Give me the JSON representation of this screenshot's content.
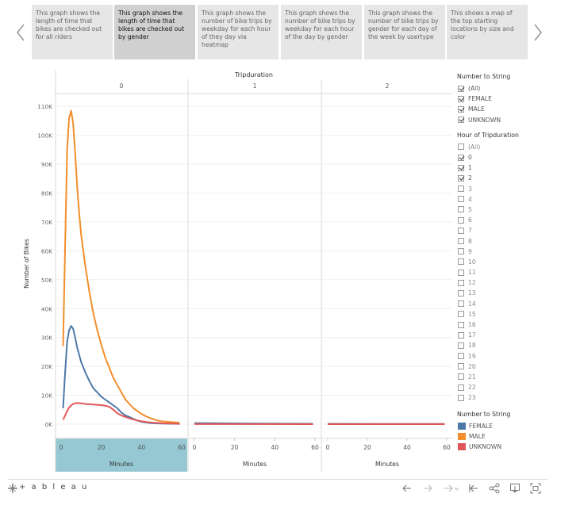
{
  "story": {
    "points": [
      {
        "text": "This graph shows the length of time that bikes are checked out for all riders",
        "active": false
      },
      {
        "text": "This graph shows the length of time that bikes are checked out by gender",
        "active": true
      },
      {
        "text": "This graph shows the number of bike trips by weekday for each hour of they day via heatmap",
        "active": false
      },
      {
        "text": "This graph shows the number of bike trips by weekday for each hour of the day by gender",
        "active": false
      },
      {
        "text": "This graph shows the number of bike trips by gender for each day of the week by usertype",
        "active": false
      },
      {
        "text": "This shows a map of the top starting locations by size and color",
        "active": false
      }
    ]
  },
  "chart_data": {
    "type": "line",
    "column_header": "Tripduration",
    "columns": [
      "0",
      "1",
      "2"
    ],
    "ylabel": "Number of Bikes",
    "xlabel": "Minutes",
    "ylim": [
      0,
      115000
    ],
    "y_ticks": [
      0,
      10000,
      20000,
      30000,
      40000,
      50000,
      60000,
      70000,
      80000,
      90000,
      100000,
      110000
    ],
    "y_tick_labels": [
      "0K",
      "10K",
      "20K",
      "30K",
      "40K",
      "50K",
      "60K",
      "70K",
      "80K",
      "90K",
      "100K",
      "110K"
    ],
    "xlim": [
      0,
      60
    ],
    "x_ticks": [
      0,
      20,
      40,
      60
    ],
    "x_tick_labels": [
      "0",
      "20",
      "40",
      "60"
    ],
    "highlighted_column": 0,
    "series": [
      {
        "name": "MALE",
        "color": "#f28e2b",
        "panels": [
          {
            "x": [
              1,
              2,
              3,
              4,
              5,
              6,
              7,
              8,
              9,
              10,
              12,
              14,
              16,
              18,
              20,
              22,
              24,
              26,
              28,
              30,
              32,
              34,
              36,
              38,
              40,
              42,
              44,
              46,
              48,
              50,
              55,
              59
            ],
            "y": [
              27000,
              62000,
              95000,
              106000,
              108500,
              104000,
              94000,
              82000,
              73000,
              65500,
              55000,
              46000,
              38500,
              32500,
              27500,
              23000,
              19500,
              16000,
              13500,
              11000,
              8500,
              7000,
              5500,
              4500,
              3500,
              2800,
              2200,
              1700,
              1300,
              1000,
              700,
              500
            ]
          },
          {
            "x": [
              0,
              30,
              59
            ],
            "y": [
              200,
              120,
              80
            ]
          },
          {
            "x": [
              0,
              30,
              59
            ],
            "y": [
              50,
              30,
              20
            ]
          }
        ]
      },
      {
        "name": "FEMALE",
        "color": "#4e79a7",
        "panels": [
          {
            "x": [
              1,
              2,
              3,
              4,
              5,
              6,
              7,
              8,
              9,
              10,
              12,
              14,
              16,
              18,
              20,
              22,
              24,
              26,
              28,
              30,
              32,
              34,
              36,
              38,
              40,
              42,
              44,
              46,
              48,
              50,
              55,
              59
            ],
            "y": [
              5500,
              18000,
              28500,
              32500,
              34000,
              33000,
              30000,
              26500,
              24000,
              21500,
              18000,
              15000,
              12500,
              11000,
              9500,
              8500,
              7500,
              6500,
              5500,
              4000,
              3000,
              2500,
              1800,
              1200,
              800,
              600,
              400,
              300,
              250,
              200,
              150,
              100
            ]
          },
          {
            "x": [
              0,
              30,
              59
            ],
            "y": [
              350,
              200,
              150
            ]
          },
          {
            "x": [
              0,
              30,
              59
            ],
            "y": [
              100,
              80,
              60
            ]
          }
        ]
      },
      {
        "name": "UNKNOWN",
        "color": "#e15759",
        "panels": [
          {
            "x": [
              1,
              2,
              3,
              4,
              5,
              6,
              7,
              8,
              10,
              12,
              14,
              16,
              18,
              20,
              22,
              24,
              26,
              28,
              30,
              32,
              34,
              36,
              38,
              40,
              42,
              44,
              46,
              48,
              50,
              55,
              59
            ],
            "y": [
              1500,
              3000,
              4500,
              5800,
              6500,
              7000,
              7200,
              7300,
              7200,
              7000,
              6900,
              6800,
              6700,
              6600,
              6400,
              6000,
              5000,
              3800,
              3000,
              2500,
              2000,
              1600,
              1300,
              1000,
              800,
              600,
              500,
              400,
              300,
              200,
              100
            ]
          },
          {
            "x": [
              0,
              30,
              59
            ],
            "y": [
              20,
              15,
              10
            ]
          },
          {
            "x": [
              0,
              30,
              59
            ],
            "y": [
              10,
              8,
              5
            ]
          }
        ]
      }
    ]
  },
  "filters": {
    "gender": {
      "title": "Number to String",
      "items": [
        {
          "label": "(All)",
          "checked": true
        },
        {
          "label": "FEMALE",
          "checked": true
        },
        {
          "label": "MALE",
          "checked": true
        },
        {
          "label": "UNKNOWN",
          "checked": true
        }
      ]
    },
    "hour": {
      "title": "Hour of Tripduration",
      "items": [
        {
          "label": "(All)",
          "checked": false
        },
        {
          "label": "0",
          "checked": true
        },
        {
          "label": "1",
          "checked": true
        },
        {
          "label": "2",
          "checked": true
        },
        {
          "label": "3",
          "checked": false
        },
        {
          "label": "4",
          "checked": false
        },
        {
          "label": "5",
          "checked": false
        },
        {
          "label": "6",
          "checked": false
        },
        {
          "label": "7",
          "checked": false
        },
        {
          "label": "8",
          "checked": false
        },
        {
          "label": "9",
          "checked": false
        },
        {
          "label": "10",
          "checked": false
        },
        {
          "label": "11",
          "checked": false
        },
        {
          "label": "12",
          "checked": false
        },
        {
          "label": "13",
          "checked": false
        },
        {
          "label": "14",
          "checked": false
        },
        {
          "label": "15",
          "checked": false
        },
        {
          "label": "16",
          "checked": false
        },
        {
          "label": "17",
          "checked": false
        },
        {
          "label": "18",
          "checked": false
        },
        {
          "label": "19",
          "checked": false
        },
        {
          "label": "20",
          "checked": false
        },
        {
          "label": "21",
          "checked": false
        },
        {
          "label": "22",
          "checked": false
        },
        {
          "label": "23",
          "checked": false
        }
      ]
    },
    "color_legend": {
      "title": "Number to String",
      "items": [
        {
          "label": "FEMALE",
          "color": "#4e79a7"
        },
        {
          "label": "MALE",
          "color": "#f28e2b"
        },
        {
          "label": "UNKNOWN",
          "color": "#e15759"
        }
      ]
    }
  },
  "toolbar": {
    "brand": "+ a b l e a u",
    "icons": [
      "undo-icon",
      "redo-icon",
      "revert-icon",
      "reset-icon",
      "share-icon",
      "download-icon",
      "fullscreen-icon"
    ]
  }
}
